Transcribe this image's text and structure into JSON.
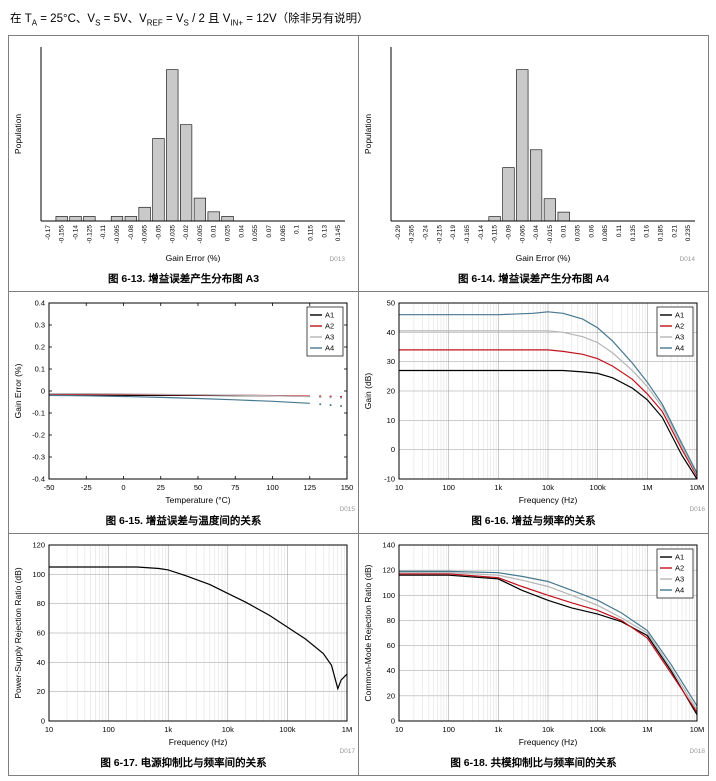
{
  "page": {
    "conditions_segments": [
      {
        "t": "在 T"
      },
      {
        "t": "A",
        "sub": true
      },
      {
        "t": " = 25°C、V"
      },
      {
        "t": "S",
        "sub": true
      },
      {
        "t": " = 5V、V"
      },
      {
        "t": "REF",
        "sub": true
      },
      {
        "t": " = V"
      },
      {
        "t": "S",
        "sub": true
      },
      {
        "t": " / 2 且 V"
      },
      {
        "t": "IN+",
        "sub": true
      },
      {
        "t": " = 12V（除非另有说明）"
      }
    ]
  },
  "colors": {
    "a1": "#000000",
    "a2": "#c1121c",
    "a3": "#b5b5b5",
    "a4": "#46788e",
    "bar_fill": "#c9c9c9",
    "grid_major": "#9a9a9a",
    "grid_minor": "#d2d2d2",
    "watermark": "#9a9a9a"
  },
  "chart_data": [
    {
      "caption": "图 6-13. 增益误差产生分布图 A3",
      "type": "hist",
      "xlabel": "Gain Error (%)",
      "ylabel": "Population",
      "watermark": "D013",
      "bins": [
        "-0.17",
        "-0.155",
        "-0.14",
        "-0.125",
        "-0.11",
        "-0.095",
        "-0.08",
        "-0.065",
        "-0.05",
        "-0.035",
        "-0.02",
        "-0.005",
        "0.01",
        "0.025",
        "0.04",
        "0.055",
        "0.07",
        "0.085",
        "0.1",
        "0.115",
        "0.13",
        "0.145"
      ],
      "values": [
        0,
        1,
        1,
        1,
        0,
        1,
        1,
        3,
        18,
        33,
        21,
        5,
        2,
        1,
        0,
        0,
        0,
        0,
        0,
        0,
        0,
        0
      ]
    },
    {
      "caption": "图 6-14. 增益误差产生分布图 A4",
      "type": "hist",
      "xlabel": "Gain Error (%)",
      "ylabel": "Population",
      "watermark": "D014",
      "bins": [
        "-0.29",
        "-0.265",
        "-0.24",
        "-0.215",
        "-0.19",
        "-0.165",
        "-0.14",
        "-0.115",
        "-0.09",
        "-0.065",
        "-0.04",
        "-0.015",
        "0.01",
        "0.035",
        "0.06",
        "0.085",
        "0.11",
        "0.135",
        "0.16",
        "0.185",
        "0.21",
        "0.235"
      ],
      "values": [
        0,
        0,
        0,
        0,
        0,
        0,
        0,
        1,
        12,
        34,
        16,
        5,
        2,
        0,
        0,
        0,
        0,
        0,
        0,
        0,
        0,
        0
      ]
    },
    {
      "caption": "图 6-15. 增益误差与温度间的关系",
      "type": "line",
      "xscale": "linear",
      "xlabel": "Temperature (°C)",
      "ylabel": "Gain Error (%)",
      "watermark": "D015",
      "xlim": [
        -50,
        150
      ],
      "ylim": [
        -0.4,
        0.4
      ],
      "xticks": [
        -50,
        -25,
        0,
        25,
        50,
        75,
        100,
        125,
        150
      ],
      "yticks": [
        -0.4,
        -0.3,
        -0.2,
        -0.1,
        0,
        0.1,
        0.2,
        0.3,
        0.4
      ],
      "grid": false,
      "legend": true,
      "series": [
        {
          "name": "A1",
          "color": "a1",
          "x": [
            -50,
            -25,
            0,
            25,
            50,
            75,
            100,
            125
          ],
          "y": [
            -0.02,
            -0.02,
            -0.02,
            -0.02,
            -0.02,
            -0.021,
            -0.022,
            -0.024
          ],
          "dots": [
            [
              132,
              -0.026
            ],
            [
              139,
              -0.027
            ],
            [
              146,
              -0.028
            ]
          ]
        },
        {
          "name": "A2",
          "color": "a2",
          "x": [
            -50,
            -25,
            0,
            25,
            50,
            75,
            100,
            125
          ],
          "y": [
            -0.016,
            -0.016,
            -0.016,
            -0.017,
            -0.018,
            -0.019,
            -0.021,
            -0.023
          ],
          "dots": [
            [
              132,
              -0.024
            ],
            [
              139,
              -0.025
            ],
            [
              146,
              -0.026
            ]
          ]
        },
        {
          "name": "A3",
          "color": "a3",
          "x": [
            -50,
            -25,
            0,
            25,
            50,
            75,
            100,
            125
          ],
          "y": [
            -0.012,
            -0.012,
            -0.013,
            -0.015,
            -0.017,
            -0.019,
            -0.022,
            -0.026
          ],
          "dots": [
            [
              132,
              -0.028
            ],
            [
              139,
              -0.03
            ],
            [
              146,
              -0.032
            ]
          ]
        },
        {
          "name": "A4",
          "color": "a4",
          "x": [
            -50,
            -25,
            0,
            25,
            50,
            75,
            100,
            125
          ],
          "y": [
            -0.02,
            -0.022,
            -0.025,
            -0.029,
            -0.034,
            -0.04,
            -0.047,
            -0.056
          ],
          "dots": [
            [
              132,
              -0.06
            ],
            [
              139,
              -0.064
            ],
            [
              146,
              -0.068
            ]
          ]
        }
      ]
    },
    {
      "caption": "图 6-16. 增益与频率的关系",
      "type": "line",
      "xscale": "log",
      "xlabel": "Frequency (Hz)",
      "ylabel": "Gain (dB)",
      "watermark": "D016",
      "xlim": [
        10,
        10000000
      ],
      "ylim": [
        -10,
        50
      ],
      "xtick_labels": [
        "10",
        "100",
        "1k",
        "10k",
        "100k",
        "1M",
        "10M"
      ],
      "yticks": [
        -10,
        0,
        10,
        20,
        30,
        40,
        50
      ],
      "grid": true,
      "legend": true,
      "series": [
        {
          "name": "A1",
          "color": "a1",
          "x": [
            10,
            100,
            1000,
            5000,
            10000,
            20000,
            50000,
            100000,
            200000,
            500000,
            1000000,
            2000000,
            5000000,
            10000000
          ],
          "y": [
            27,
            27,
            27,
            27,
            27,
            27,
            26.5,
            26,
            24.5,
            21,
            17,
            11,
            -2,
            -10
          ]
        },
        {
          "name": "A2",
          "color": "a2",
          "x": [
            10,
            100,
            1000,
            5000,
            10000,
            20000,
            50000,
            100000,
            200000,
            500000,
            1000000,
            2000000,
            5000000,
            10000000
          ],
          "y": [
            34,
            34,
            34,
            34,
            34,
            33.5,
            32.5,
            31,
            28.5,
            24,
            19,
            13,
            0,
            -9
          ]
        },
        {
          "name": "A3",
          "color": "a3",
          "x": [
            10,
            100,
            1000,
            5000,
            10000,
            20000,
            50000,
            100000,
            200000,
            500000,
            1000000,
            2000000,
            5000000,
            10000000
          ],
          "y": [
            40.5,
            40.5,
            40.5,
            40.5,
            40.5,
            40,
            38.5,
            36.5,
            33,
            27,
            21.5,
            14.5,
            1,
            -8.5
          ]
        },
        {
          "name": "A4",
          "color": "a4",
          "x": [
            10,
            100,
            1000,
            5000,
            10000,
            20000,
            50000,
            100000,
            200000,
            500000,
            1000000,
            2000000,
            5000000,
            10000000
          ],
          "y": [
            46,
            46,
            46,
            46.5,
            47,
            46.5,
            44.5,
            41.5,
            37,
            29.5,
            23,
            15.5,
            2,
            -8
          ]
        }
      ]
    },
    {
      "caption": "图 6-17. 电源抑制比与频率间的关系",
      "type": "line",
      "xscale": "log",
      "xlabel": "Frequency (Hz)",
      "ylabel": "Power-Supply Rejection Ratio (dB)",
      "watermark": "D017",
      "xlim": [
        10,
        1000000
      ],
      "ylim": [
        0,
        120
      ],
      "xtick_labels": [
        "10",
        "100",
        "1k",
        "10k",
        "100k",
        "1M"
      ],
      "yticks": [
        0,
        20,
        40,
        60,
        80,
        100,
        120
      ],
      "grid": true,
      "legend": false,
      "series": [
        {
          "name": "PSRR",
          "color": "a1",
          "x": [
            10,
            100,
            300,
            700,
            1000,
            2000,
            5000,
            10000,
            20000,
            50000,
            100000,
            200000,
            400000,
            550000,
            700000,
            800000,
            1000000
          ],
          "y": [
            105,
            105,
            105,
            104,
            103,
            99,
            93,
            87,
            81,
            72,
            64,
            56,
            46,
            38,
            22,
            28,
            32
          ]
        }
      ]
    },
    {
      "caption": "图 6-18. 共模抑制比与频率间的关系",
      "type": "line",
      "xscale": "log",
      "xlabel": "Frequency (Hz)",
      "ylabel": "Common-Mode Rejection Ratio (dB)",
      "watermark": "D018",
      "xlim": [
        10,
        10000000
      ],
      "ylim": [
        0,
        140
      ],
      "xtick_labels": [
        "10",
        "100",
        "1k",
        "10k",
        "100k",
        "1M",
        "10M"
      ],
      "yticks": [
        0,
        20,
        40,
        60,
        80,
        100,
        120,
        140
      ],
      "grid": true,
      "legend": true,
      "series": [
        {
          "name": "A1",
          "color": "a1",
          "x": [
            10,
            100,
            1000,
            3000,
            10000,
            30000,
            100000,
            300000,
            1000000,
            3000000,
            10000000
          ],
          "y": [
            116,
            116,
            113,
            104,
            96,
            90,
            85,
            79,
            68,
            40,
            5
          ]
        },
        {
          "name": "A2",
          "color": "a2",
          "x": [
            10,
            100,
            1000,
            3000,
            10000,
            30000,
            100000,
            300000,
            1000000,
            3000000,
            10000000
          ],
          "y": [
            117,
            117,
            114,
            107,
            100,
            94,
            88,
            80,
            66,
            38,
            7
          ]
        },
        {
          "name": "A3",
          "color": "a3",
          "x": [
            10,
            100,
            1000,
            3000,
            10000,
            30000,
            100000,
            300000,
            1000000,
            3000000,
            10000000
          ],
          "y": [
            118,
            118,
            116,
            112,
            107,
            100,
            92,
            82,
            70,
            42,
            9
          ]
        },
        {
          "name": "A4",
          "color": "a4",
          "x": [
            10,
            100,
            1000,
            3000,
            10000,
            30000,
            100000,
            300000,
            1000000,
            3000000,
            10000000
          ],
          "y": [
            119,
            119,
            118,
            115,
            111,
            104,
            96,
            86,
            72,
            45,
            12
          ]
        }
      ]
    }
  ]
}
